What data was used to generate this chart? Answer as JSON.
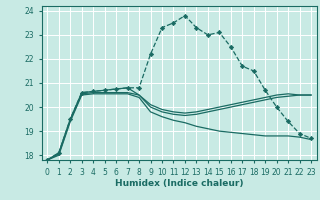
{
  "xlabel": "Humidex (Indice chaleur)",
  "xlim": [
    -0.5,
    23.5
  ],
  "ylim": [
    17.8,
    24.2
  ],
  "yticks": [
    18,
    19,
    20,
    21,
    22,
    23,
    24
  ],
  "xticks": [
    0,
    1,
    2,
    3,
    4,
    5,
    6,
    7,
    8,
    9,
    10,
    11,
    12,
    13,
    14,
    15,
    16,
    17,
    18,
    19,
    20,
    21,
    22,
    23
  ],
  "bg_color": "#c8eae4",
  "line_color": "#1a6b63",
  "grid_color": "#ffffff",
  "lines": [
    {
      "x": [
        0,
        1,
        2,
        3,
        4,
        5,
        6,
        7,
        8,
        9,
        10,
        11,
        12,
        13,
        14,
        15,
        16,
        17,
        18,
        19,
        20,
        21,
        22,
        23
      ],
      "y": [
        17.8,
        18.1,
        19.5,
        20.6,
        20.65,
        20.7,
        20.75,
        20.8,
        20.8,
        22.2,
        23.3,
        23.5,
        23.8,
        23.3,
        23.0,
        23.1,
        22.5,
        21.7,
        21.5,
        20.7,
        20.0,
        19.4,
        18.9,
        18.7
      ],
      "marker": "D",
      "linestyle": "--",
      "linewidth": 0.9,
      "markersize": 2.2
    },
    {
      "x": [
        0,
        1,
        2,
        3,
        4,
        5,
        6,
        7,
        8,
        9,
        10,
        11,
        12,
        13,
        14,
        15,
        16,
        17,
        18,
        19,
        20,
        21,
        22,
        23
      ],
      "y": [
        17.8,
        18.1,
        19.5,
        20.6,
        20.65,
        20.7,
        20.75,
        20.8,
        20.5,
        20.1,
        19.9,
        19.8,
        19.75,
        19.8,
        19.9,
        20.0,
        20.1,
        20.2,
        20.3,
        20.4,
        20.5,
        20.55,
        20.5,
        20.5
      ],
      "marker": null,
      "linestyle": "-",
      "linewidth": 0.9,
      "markersize": 0
    },
    {
      "x": [
        0,
        1,
        2,
        3,
        4,
        5,
        6,
        7,
        8,
        9,
        10,
        11,
        12,
        13,
        14,
        15,
        16,
        17,
        18,
        19,
        20,
        21,
        22,
        23
      ],
      "y": [
        17.8,
        18.05,
        19.45,
        20.55,
        20.6,
        20.6,
        20.6,
        20.6,
        20.5,
        20.0,
        19.8,
        19.7,
        19.65,
        19.7,
        19.8,
        19.9,
        20.0,
        20.1,
        20.2,
        20.3,
        20.4,
        20.45,
        20.5,
        20.5
      ],
      "marker": null,
      "linestyle": "-",
      "linewidth": 0.9,
      "markersize": 0
    },
    {
      "x": [
        0,
        1,
        2,
        3,
        4,
        5,
        6,
        7,
        8,
        9,
        10,
        11,
        12,
        13,
        14,
        15,
        16,
        17,
        18,
        19,
        20,
        21,
        22,
        23
      ],
      "y": [
        17.8,
        18.0,
        19.4,
        20.5,
        20.55,
        20.55,
        20.55,
        20.55,
        20.4,
        19.8,
        19.6,
        19.45,
        19.35,
        19.2,
        19.1,
        19.0,
        18.95,
        18.9,
        18.85,
        18.8,
        18.8,
        18.8,
        18.75,
        18.65
      ],
      "marker": null,
      "linestyle": "-",
      "linewidth": 0.9,
      "markersize": 0
    }
  ]
}
